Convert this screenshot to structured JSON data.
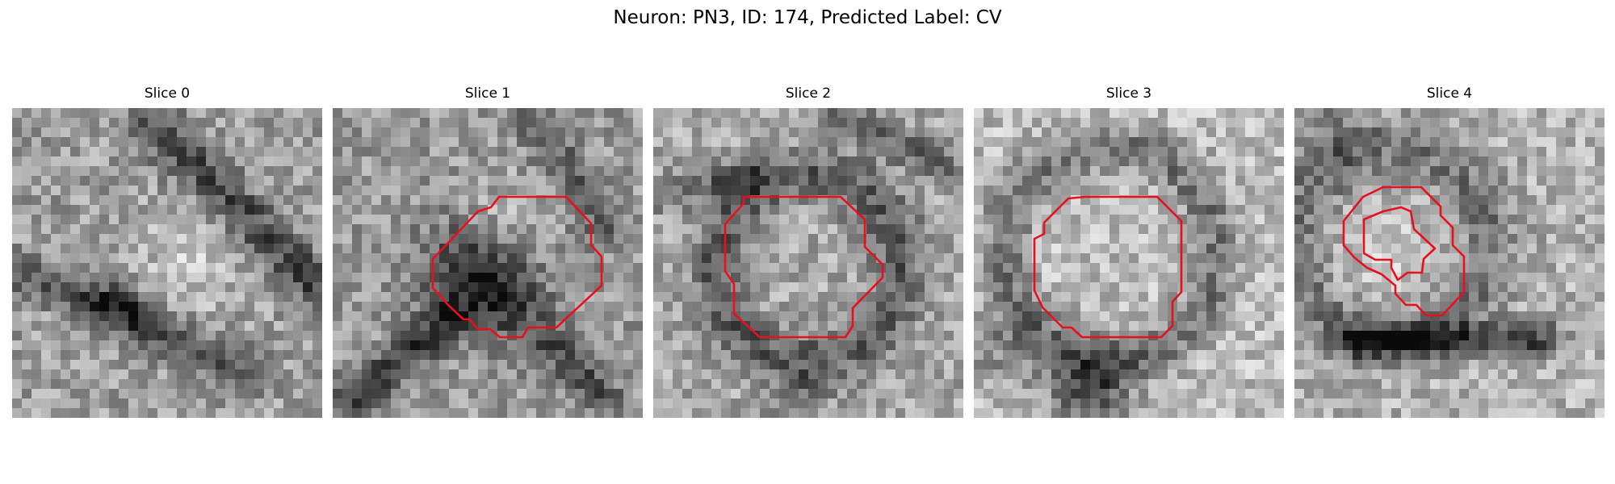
{
  "figure": {
    "title": "Neuron: PN3, ID: 174, Predicted Label: CV"
  },
  "panels": [
    {
      "title": "Slice 0",
      "pattern": "slice0",
      "contours": []
    },
    {
      "title": "Slice 1",
      "pattern": "slice1",
      "contours": [
        "slice1-outer"
      ]
    },
    {
      "title": "Slice 2",
      "pattern": "slice2",
      "contours": [
        "slice2-outer"
      ]
    },
    {
      "title": "Slice 3",
      "pattern": "slice3",
      "contours": [
        "slice3-outer"
      ]
    },
    {
      "title": "Slice 4",
      "pattern": "slice4",
      "contours": [
        "slice4-outer",
        "slice4-inner"
      ]
    }
  ],
  "colors": {
    "contour": "#e8101c",
    "background": "#ffffff",
    "colormap": "gray"
  }
}
